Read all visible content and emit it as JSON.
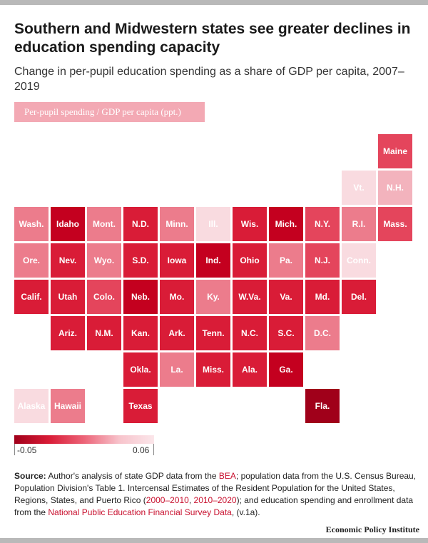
{
  "header": {
    "title": "Southern and Midwestern states see greater declines in education spending capacity",
    "subtitle": "Change in per-pupil education spending as a share of GDP per capita, 2007–2019"
  },
  "legend": {
    "label": "Per-pupil spending / GDP per capita (ppt.)",
    "min_label": "-0.05",
    "max_label": "0.06",
    "min_value": -0.05,
    "max_value": 0.06
  },
  "colors": {
    "darkest": "#a0001a",
    "dark": "#c4001f",
    "strong": "#d91c37",
    "medium": "#e4455c",
    "light": "#ec7c8c",
    "pale": "#f3b3bd",
    "palest": "#f9dbe0",
    "text": "#ffffff"
  },
  "states": [
    {
      "label": "Maine",
      "col": 10,
      "row": 0,
      "shade": "medium"
    },
    {
      "label": "Vt.",
      "col": 9,
      "row": 1,
      "shade": "palest"
    },
    {
      "label": "N.H.",
      "col": 10,
      "row": 1,
      "shade": "pale"
    },
    {
      "label": "Wash.",
      "col": 0,
      "row": 2,
      "shade": "light"
    },
    {
      "label": "Idaho",
      "col": 1,
      "row": 2,
      "shade": "dark"
    },
    {
      "label": "Mont.",
      "col": 2,
      "row": 2,
      "shade": "light"
    },
    {
      "label": "N.D.",
      "col": 3,
      "row": 2,
      "shade": "strong"
    },
    {
      "label": "Minn.",
      "col": 4,
      "row": 2,
      "shade": "light"
    },
    {
      "label": "Ill.",
      "col": 5,
      "row": 2,
      "shade": "palest"
    },
    {
      "label": "Wis.",
      "col": 6,
      "row": 2,
      "shade": "strong"
    },
    {
      "label": "Mich.",
      "col": 7,
      "row": 2,
      "shade": "dark"
    },
    {
      "label": "N.Y.",
      "col": 8,
      "row": 2,
      "shade": "medium"
    },
    {
      "label": "R.I.",
      "col": 9,
      "row": 2,
      "shade": "light"
    },
    {
      "label": "Mass.",
      "col": 10,
      "row": 2,
      "shade": "medium"
    },
    {
      "label": "Ore.",
      "col": 0,
      "row": 3,
      "shade": "light"
    },
    {
      "label": "Nev.",
      "col": 1,
      "row": 3,
      "shade": "strong"
    },
    {
      "label": "Wyo.",
      "col": 2,
      "row": 3,
      "shade": "light"
    },
    {
      "label": "S.D.",
      "col": 3,
      "row": 3,
      "shade": "strong"
    },
    {
      "label": "Iowa",
      "col": 4,
      "row": 3,
      "shade": "strong"
    },
    {
      "label": "Ind.",
      "col": 5,
      "row": 3,
      "shade": "dark"
    },
    {
      "label": "Ohio",
      "col": 6,
      "row": 3,
      "shade": "strong"
    },
    {
      "label": "Pa.",
      "col": 7,
      "row": 3,
      "shade": "light"
    },
    {
      "label": "N.J.",
      "col": 8,
      "row": 3,
      "shade": "medium"
    },
    {
      "label": "Conn.",
      "col": 9,
      "row": 3,
      "shade": "palest"
    },
    {
      "label": "Calif.",
      "col": 0,
      "row": 4,
      "shade": "strong"
    },
    {
      "label": "Utah",
      "col": 1,
      "row": 4,
      "shade": "strong"
    },
    {
      "label": "Colo.",
      "col": 2,
      "row": 4,
      "shade": "medium"
    },
    {
      "label": "Neb.",
      "col": 3,
      "row": 4,
      "shade": "dark"
    },
    {
      "label": "Mo.",
      "col": 4,
      "row": 4,
      "shade": "strong"
    },
    {
      "label": "Ky.",
      "col": 5,
      "row": 4,
      "shade": "light"
    },
    {
      "label": "W.Va.",
      "col": 6,
      "row": 4,
      "shade": "strong"
    },
    {
      "label": "Va.",
      "col": 7,
      "row": 4,
      "shade": "strong"
    },
    {
      "label": "Md.",
      "col": 8,
      "row": 4,
      "shade": "strong"
    },
    {
      "label": "Del.",
      "col": 9,
      "row": 4,
      "shade": "strong"
    },
    {
      "label": "Ariz.",
      "col": 1,
      "row": 5,
      "shade": "strong"
    },
    {
      "label": "N.M.",
      "col": 2,
      "row": 5,
      "shade": "strong"
    },
    {
      "label": "Kan.",
      "col": 3,
      "row": 5,
      "shade": "strong"
    },
    {
      "label": "Ark.",
      "col": 4,
      "row": 5,
      "shade": "strong"
    },
    {
      "label": "Tenn.",
      "col": 5,
      "row": 5,
      "shade": "strong"
    },
    {
      "label": "N.C.",
      "col": 6,
      "row": 5,
      "shade": "strong"
    },
    {
      "label": "S.C.",
      "col": 7,
      "row": 5,
      "shade": "strong"
    },
    {
      "label": "D.C.",
      "col": 8,
      "row": 5,
      "shade": "light"
    },
    {
      "label": "Okla.",
      "col": 3,
      "row": 6,
      "shade": "strong"
    },
    {
      "label": "La.",
      "col": 4,
      "row": 6,
      "shade": "light"
    },
    {
      "label": "Miss.",
      "col": 5,
      "row": 6,
      "shade": "strong"
    },
    {
      "label": "Ala.",
      "col": 6,
      "row": 6,
      "shade": "strong"
    },
    {
      "label": "Ga.",
      "col": 7,
      "row": 6,
      "shade": "dark"
    },
    {
      "label": "Alaska",
      "col": 0,
      "row": 7,
      "shade": "palest"
    },
    {
      "label": "Hawaii",
      "col": 1,
      "row": 7,
      "shade": "light"
    },
    {
      "label": "Texas",
      "col": 3,
      "row": 7,
      "shade": "strong"
    },
    {
      "label": "Fla.",
      "col": 8,
      "row": 7,
      "shade": "darkest"
    }
  ],
  "source": {
    "label": "Source:",
    "text_1": " Author's analysis of state GDP data from the ",
    "link_bea": "BEA",
    "text_2": "; population data from the U.S. Census Bureau, Population Division's Table 1. Intercensal Estimates of the Resident Population for the United States, Regions, States, and Puerto Rico (",
    "link_2000": "2000–2010",
    "text_3": ", ",
    "link_2010": "2010–2020",
    "text_4": "); and education spending and enrollment data from the ",
    "link_npefs": "National Public Education Financial Survey Data",
    "text_5": ", (v.1a)."
  },
  "footer": {
    "brand": "Economic Policy Institute"
  }
}
